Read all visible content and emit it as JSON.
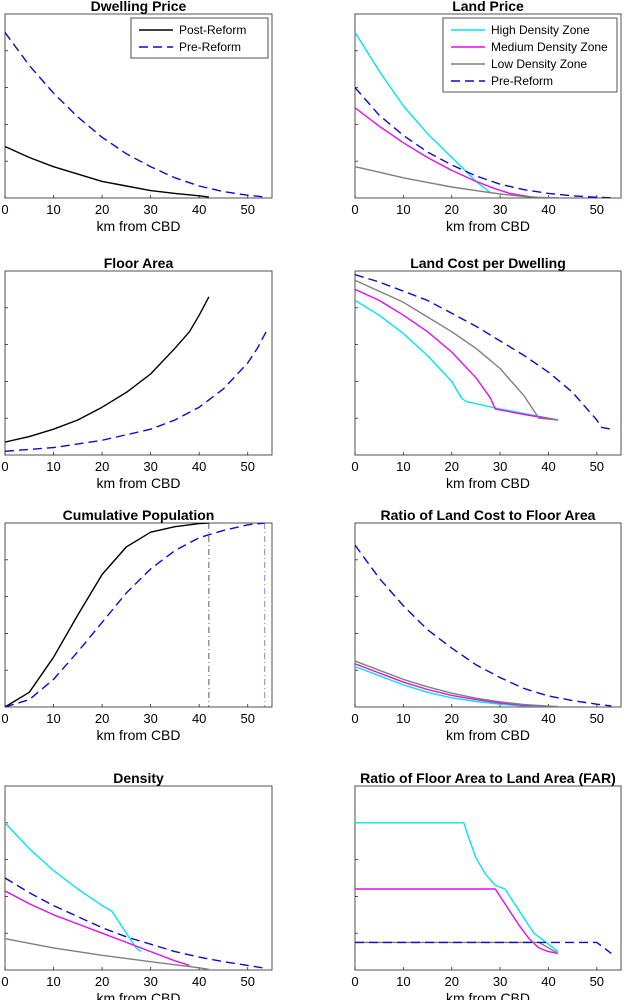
{
  "figure": {
    "type": "multi-panel line figure"
  },
  "styles": {
    "post": {
      "color": "#000000",
      "dash": "none"
    },
    "pre": {
      "color": "#0a0ad2",
      "dash": "9,5"
    },
    "high": {
      "color": "#00e6ec",
      "dash": "none"
    },
    "medium": {
      "color": "#e80ce8",
      "dash": "none"
    },
    "low": {
      "color": "#7f7f7f",
      "dash": "none"
    },
    "vpost": {
      "color": "#333333",
      "dash": "6,3,1,3"
    },
    "vpre": {
      "color": "#6a6ae0",
      "dash": "6,3,1,3"
    }
  },
  "chart_data": [
    {
      "id": "dwelling-price",
      "type": "line",
      "title": "Dwelling Price",
      "xlabel": "km from CBD",
      "xlim": [
        0,
        55
      ],
      "ylim": [
        0,
        1
      ],
      "xticks": [
        0,
        10,
        20,
        30,
        40,
        50
      ],
      "xtick_labels": [
        "0",
        "10",
        "20",
        "30",
        "40",
        "50"
      ],
      "legend": {
        "position": "top-right",
        "entries": [
          {
            "label": "Post-Reform",
            "style": "post"
          },
          {
            "label": "Pre-Reform",
            "style": "pre"
          }
        ]
      },
      "series": [
        {
          "name": "Post-Reform",
          "style": "post",
          "x": [
            0,
            5,
            10,
            15,
            20,
            25,
            30,
            35,
            40,
            42
          ],
          "y": [
            0.28,
            0.22,
            0.17,
            0.13,
            0.09,
            0.065,
            0.04,
            0.025,
            0.012,
            0.005
          ]
        },
        {
          "name": "Pre-Reform",
          "style": "pre",
          "x": [
            0,
            5,
            10,
            15,
            20,
            25,
            30,
            35,
            40,
            45,
            50,
            53
          ],
          "y": [
            0.9,
            0.72,
            0.57,
            0.44,
            0.33,
            0.24,
            0.17,
            0.11,
            0.065,
            0.035,
            0.015,
            0.007
          ]
        }
      ]
    },
    {
      "id": "land-price",
      "type": "line",
      "title": "Land Price",
      "xlabel": "km from CBD",
      "xlim": [
        0,
        55
      ],
      "ylim": [
        0,
        1
      ],
      "xticks": [
        0,
        10,
        20,
        30,
        40,
        50
      ],
      "xtick_labels": [
        "0",
        "10",
        "20",
        "30",
        "40",
        "50"
      ],
      "legend": {
        "position": "top-right",
        "entries": [
          {
            "label": "High Density Zone",
            "style": "high"
          },
          {
            "label": "Medium Density Zone",
            "style": "medium"
          },
          {
            "label": "Low Density Zone",
            "style": "low"
          },
          {
            "label": "Pre-Reform",
            "style": "pre"
          }
        ]
      },
      "series": [
        {
          "name": "High Density Zone",
          "style": "high",
          "x": [
            0,
            5,
            10,
            15,
            20,
            22,
            25,
            28
          ],
          "y": [
            0.9,
            0.69,
            0.5,
            0.35,
            0.22,
            0.17,
            0.09,
            0.03
          ]
        },
        {
          "name": "Medium Density Zone",
          "style": "medium",
          "x": [
            0,
            5,
            10,
            15,
            20,
            25,
            29,
            32,
            37
          ],
          "y": [
            0.49,
            0.39,
            0.3,
            0.22,
            0.15,
            0.09,
            0.05,
            0.025,
            0.004
          ]
        },
        {
          "name": "Low Density Zone",
          "style": "low",
          "x": [
            0,
            5,
            10,
            15,
            20,
            25,
            30,
            35,
            38,
            42
          ],
          "y": [
            0.17,
            0.14,
            0.11,
            0.085,
            0.06,
            0.04,
            0.022,
            0.008,
            0.004,
            0.001
          ]
        },
        {
          "name": "Pre-Reform",
          "style": "pre",
          "x": [
            0,
            5,
            10,
            15,
            20,
            25,
            30,
            35,
            40,
            45,
            50,
            53
          ],
          "y": [
            0.6,
            0.45,
            0.34,
            0.25,
            0.18,
            0.12,
            0.075,
            0.045,
            0.025,
            0.012,
            0.004,
            0.001
          ]
        }
      ]
    },
    {
      "id": "floor-area",
      "type": "line",
      "title": "Floor Area",
      "xlabel": "km from CBD",
      "xlim": [
        0,
        55
      ],
      "ylim": [
        0,
        1
      ],
      "xticks": [
        0,
        10,
        20,
        30,
        40,
        50
      ],
      "xtick_labels": [
        "0",
        "10",
        "20",
        "30",
        "40",
        "50"
      ],
      "series": [
        {
          "name": "Post-Reform",
          "style": "post",
          "x": [
            0,
            5,
            10,
            15,
            20,
            25,
            30,
            35,
            38,
            40,
            42
          ],
          "y": [
            0.07,
            0.1,
            0.14,
            0.19,
            0.26,
            0.34,
            0.44,
            0.58,
            0.67,
            0.76,
            0.86
          ]
        },
        {
          "name": "Pre-Reform",
          "style": "pre",
          "x": [
            0,
            10,
            20,
            30,
            35,
            40,
            45,
            50,
            52,
            54
          ],
          "y": [
            0.02,
            0.04,
            0.08,
            0.14,
            0.19,
            0.26,
            0.36,
            0.5,
            0.58,
            0.68
          ]
        }
      ]
    },
    {
      "id": "land-cost-per-dwelling",
      "type": "line",
      "title": "Land Cost per Dwelling",
      "xlabel": "km from CBD",
      "xlim": [
        0,
        55
      ],
      "ylim": [
        0,
        1
      ],
      "xticks": [
        0,
        10,
        20,
        30,
        40,
        50
      ],
      "xtick_labels": [
        "0",
        "10",
        "20",
        "30",
        "40",
        "50"
      ],
      "series": [
        {
          "name": "High Density Zone",
          "style": "high",
          "x": [
            0,
            5,
            10,
            15,
            20,
            22,
            23,
            30,
            40,
            42
          ],
          "y": [
            0.84,
            0.76,
            0.66,
            0.54,
            0.4,
            0.31,
            0.29,
            0.25,
            0.2,
            0.19
          ]
        },
        {
          "name": "Medium Density Zone",
          "style": "medium",
          "x": [
            0,
            5,
            10,
            15,
            20,
            25,
            28,
            29,
            35,
            42
          ],
          "y": [
            0.9,
            0.84,
            0.76,
            0.67,
            0.56,
            0.42,
            0.31,
            0.25,
            0.22,
            0.19
          ]
        },
        {
          "name": "Low Density Zone",
          "style": "low",
          "x": [
            0,
            5,
            10,
            15,
            20,
            25,
            30,
            35,
            38,
            42
          ],
          "y": [
            0.95,
            0.89,
            0.83,
            0.75,
            0.67,
            0.58,
            0.47,
            0.32,
            0.2,
            0.19
          ]
        },
        {
          "name": "Pre-Reform",
          "style": "pre",
          "x": [
            0,
            5,
            10,
            15,
            20,
            25,
            30,
            35,
            40,
            45,
            48,
            50,
            51,
            53
          ],
          "y": [
            0.98,
            0.94,
            0.89,
            0.84,
            0.77,
            0.7,
            0.62,
            0.54,
            0.45,
            0.34,
            0.25,
            0.19,
            0.15,
            0.14
          ]
        }
      ]
    },
    {
      "id": "cumulative-population",
      "type": "line",
      "title": "Cumulative Population",
      "xlabel": "km from CBD",
      "xlim": [
        0,
        55
      ],
      "ylim": [
        0,
        1
      ],
      "xticks": [
        0,
        10,
        20,
        30,
        40,
        50
      ],
      "xtick_labels": [
        "0",
        "10",
        "20",
        "30",
        "40",
        "50"
      ],
      "vlines": [
        {
          "x": 42,
          "style": "vpost"
        },
        {
          "x": 53.5,
          "style": "vpre"
        }
      ],
      "series": [
        {
          "name": "Post-Reform",
          "style": "post",
          "x": [
            0,
            5,
            10,
            15,
            20,
            25,
            30,
            35,
            40,
            42
          ],
          "y": [
            0,
            0.08,
            0.27,
            0.5,
            0.72,
            0.87,
            0.95,
            0.98,
            0.997,
            1.0
          ]
        },
        {
          "name": "Pre-Reform",
          "style": "pre",
          "x": [
            0,
            5,
            10,
            15,
            20,
            25,
            30,
            35,
            40,
            45,
            50,
            53.5
          ],
          "y": [
            0,
            0.04,
            0.15,
            0.3,
            0.46,
            0.62,
            0.75,
            0.85,
            0.92,
            0.96,
            0.99,
            1.0
          ]
        }
      ]
    },
    {
      "id": "ratio-land-cost-floor-area",
      "type": "line",
      "title": "Ratio of Land Cost to Floor Area",
      "xlabel": "km from CBD",
      "xlim": [
        0,
        55
      ],
      "ylim": [
        0,
        1
      ],
      "xticks": [
        0,
        10,
        20,
        30,
        40,
        50
      ],
      "xtick_labels": [
        "0",
        "10",
        "20",
        "30",
        "40",
        "50"
      ],
      "series": [
        {
          "name": "High Density Zone",
          "style": "high",
          "x": [
            0,
            5,
            10,
            15,
            20,
            25,
            30,
            35,
            40
          ],
          "y": [
            0.22,
            0.17,
            0.12,
            0.08,
            0.05,
            0.03,
            0.015,
            0.006,
            0.002
          ]
        },
        {
          "name": "Medium Density Zone",
          "style": "medium",
          "x": [
            0,
            5,
            10,
            15,
            20,
            25,
            30,
            35,
            40
          ],
          "y": [
            0.235,
            0.185,
            0.135,
            0.095,
            0.063,
            0.04,
            0.022,
            0.009,
            0.003
          ]
        },
        {
          "name": "Low Density Zone",
          "style": "low",
          "x": [
            0,
            5,
            10,
            15,
            20,
            25,
            30,
            35,
            40,
            42
          ],
          "y": [
            0.25,
            0.2,
            0.15,
            0.11,
            0.075,
            0.048,
            0.028,
            0.013,
            0.005,
            0.002
          ]
        },
        {
          "name": "Pre-Reform",
          "style": "pre",
          "x": [
            0,
            5,
            10,
            15,
            20,
            25,
            30,
            35,
            40,
            45,
            50,
            53
          ],
          "y": [
            0.88,
            0.7,
            0.55,
            0.42,
            0.32,
            0.23,
            0.16,
            0.1,
            0.06,
            0.035,
            0.015,
            0.006
          ]
        }
      ]
    },
    {
      "id": "density",
      "type": "line",
      "title": "Density",
      "xlabel": "km from CBD",
      "xlim": [
        0,
        55
      ],
      "ylim": [
        0,
        1
      ],
      "xticks": [
        0,
        10,
        20,
        30,
        40,
        50
      ],
      "xtick_labels": [
        "0",
        "10",
        "20",
        "30",
        "40",
        "50"
      ],
      "series": [
        {
          "name": "High Density Zone",
          "style": "high",
          "x": [
            0,
            5,
            10,
            15,
            20,
            22,
            25,
            27,
            28
          ],
          "y": [
            0.8,
            0.66,
            0.54,
            0.44,
            0.35,
            0.32,
            0.2,
            0.12,
            0.1
          ]
        },
        {
          "name": "Medium Density Zone",
          "style": "medium",
          "x": [
            0,
            5,
            10,
            15,
            20,
            25,
            30,
            35,
            38
          ],
          "y": [
            0.43,
            0.36,
            0.3,
            0.25,
            0.2,
            0.15,
            0.1,
            0.05,
            0.025
          ]
        },
        {
          "name": "Low Density Zone",
          "style": "low",
          "x": [
            0,
            10,
            20,
            30,
            40,
            42
          ],
          "y": [
            0.17,
            0.12,
            0.08,
            0.045,
            0.012,
            0.003
          ]
        },
        {
          "name": "Pre-Reform",
          "style": "pre",
          "x": [
            0,
            5,
            10,
            15,
            20,
            25,
            30,
            35,
            40,
            45,
            50,
            53
          ],
          "y": [
            0.5,
            0.42,
            0.35,
            0.29,
            0.23,
            0.18,
            0.14,
            0.1,
            0.07,
            0.045,
            0.025,
            0.012
          ]
        }
      ]
    },
    {
      "id": "far",
      "type": "line",
      "title": "Ratio of Floor Area to Land Area (FAR)",
      "xlabel": "km from CBD",
      "xlim": [
        0,
        55
      ],
      "ylim": [
        0,
        1
      ],
      "xticks": [
        0,
        10,
        20,
        30,
        40,
        50
      ],
      "xtick_labels": [
        "0",
        "10",
        "20",
        "30",
        "40",
        "50"
      ],
      "series": [
        {
          "name": "High Density Zone",
          "style": "high",
          "x": [
            0,
            22.5,
            23.5,
            25,
            27,
            29,
            31,
            32,
            37,
            40,
            42
          ],
          "y": [
            0.8,
            0.8,
            0.72,
            0.61,
            0.52,
            0.46,
            0.44,
            0.4,
            0.2,
            0.14,
            0.1
          ]
        },
        {
          "name": "Medium Density Zone",
          "style": "medium",
          "x": [
            0,
            29,
            30,
            32,
            34,
            36,
            38,
            40,
            42
          ],
          "y": [
            0.44,
            0.44,
            0.4,
            0.32,
            0.24,
            0.17,
            0.12,
            0.1,
            0.09
          ]
        },
        {
          "name": "Low Density Zone",
          "style": "low",
          "x": [
            0,
            38,
            40,
            42
          ],
          "y": [
            0.15,
            0.15,
            0.12,
            0.09
          ]
        },
        {
          "name": "Pre-Reform",
          "style": "pre",
          "x": [
            0,
            50,
            52,
            53
          ],
          "y": [
            0.15,
            0.15,
            0.11,
            0.09
          ]
        }
      ]
    }
  ]
}
